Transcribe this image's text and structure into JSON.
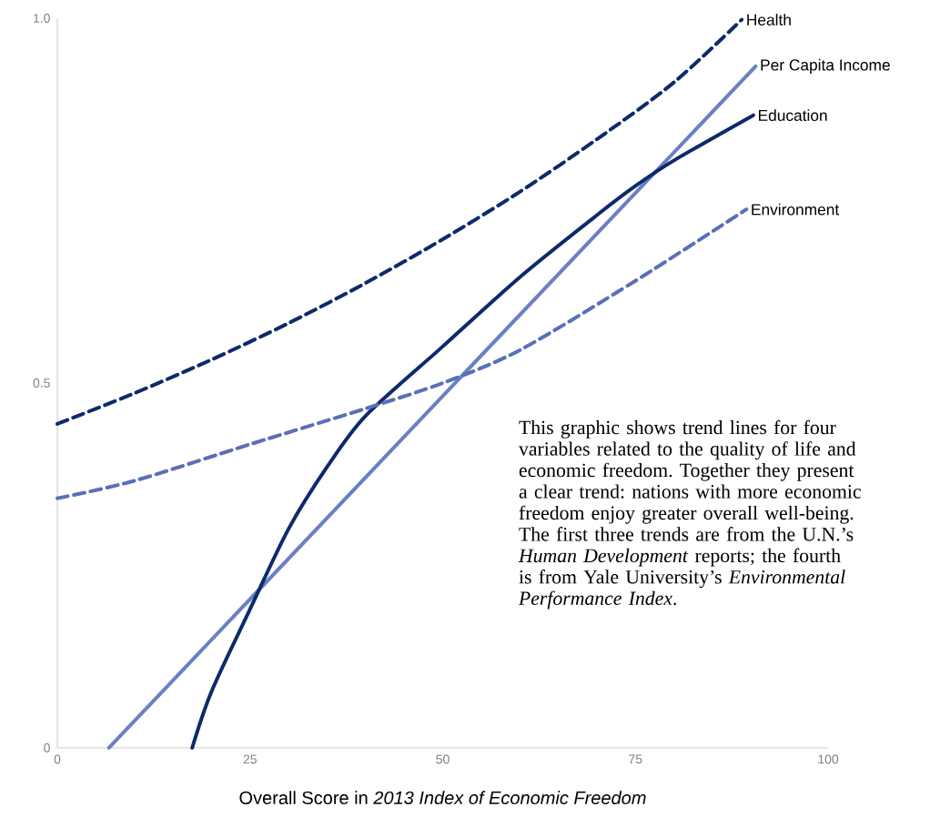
{
  "chart_data": {
    "type": "line",
    "xlabel": "Overall Score in *2013 Index of Economic Freedom*",
    "xlim": [
      0,
      100
    ],
    "ylim": [
      0,
      1
    ],
    "xticks": [
      0,
      25,
      50,
      75,
      100
    ],
    "yticks": [
      0,
      0.5,
      {
        "value": 1,
        "label": "1.0"
      }
    ],
    "grid": false,
    "marker": "none",
    "series": [
      {
        "name": "Health",
        "color": "#0d2a6b",
        "line_style": "dashed",
        "x": [
          0,
          10,
          20,
          30,
          40,
          50,
          60,
          70,
          80,
          88.8
        ],
        "values": [
          0.444,
          0.486,
          0.532,
          0.582,
          0.637,
          0.697,
          0.762,
          0.834,
          0.912,
          0.998
        ]
      },
      {
        "name": "Per Capita Income",
        "color": "#6b7fc4",
        "line_style": "solid",
        "x": [
          6.7,
          90.6
        ],
        "values": [
          0,
          0.934
        ]
      },
      {
        "name": "Education",
        "color": "#0d2a6b",
        "line_style": "solid",
        "x": [
          17.5,
          20,
          25,
          30,
          35,
          40,
          50,
          60,
          70,
          75,
          80,
          90.3
        ],
        "values": [
          0,
          0.077,
          0.19,
          0.3,
          0.385,
          0.455,
          0.55,
          0.645,
          0.73,
          0.77,
          0.805,
          0.867
        ]
      },
      {
        "name": "Environment",
        "color": "#5a6fb8",
        "line_style": "dashed",
        "x": [
          0,
          10,
          25,
          40,
          50,
          60,
          75,
          89.4
        ],
        "values": [
          0.342,
          0.366,
          0.416,
          0.465,
          0.5,
          0.545,
          0.64,
          0.738
        ]
      }
    ],
    "annotations": [
      "This graphic shows trend lines for four variables related to the quality of life and economic freedom. Together they present a clear trend: nations with more economic freedom enjoy greater overall well-being. The first three trends are from the U.N.’s *Human Development* reports; the fourth is from Yale University’s *Environmental Performance Index*."
    ]
  }
}
